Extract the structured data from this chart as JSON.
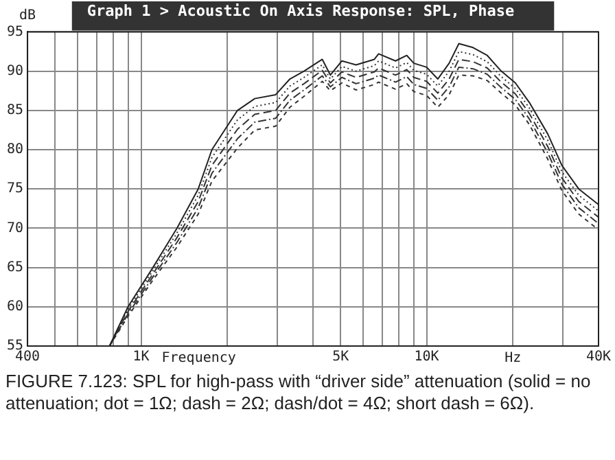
{
  "chart_data": {
    "type": "line",
    "title": "Graph 1 > Acoustic On Axis Response: SPL, Phase",
    "xlabel": "Frequency",
    "ylabel": "dB",
    "annotations": [
      "Hz",
      "FIGURE 7.123: SPL for high-pass with “driver side” attenuation (solid = no attenuation; dot = 1Ω; dash = 2Ω; dash/dot = 4Ω; short dash = 6Ω)."
    ],
    "log": "x",
    "grid": true,
    "marker": "none",
    "legend": false,
    "xlim": [
      400,
      40000
    ],
    "ylim": [
      55,
      95
    ],
    "xticks": [
      {
        "value": 400,
        "label": "400"
      },
      {
        "value": 500,
        "label": null
      },
      {
        "value": 600,
        "label": null
      },
      {
        "value": 700,
        "label": null
      },
      {
        "value": 800,
        "label": null
      },
      {
        "value": 900,
        "label": null
      },
      {
        "value": 1000,
        "label": "1K"
      },
      {
        "value": 2000,
        "label": null
      },
      {
        "value": 3000,
        "label": null
      },
      {
        "value": 4000,
        "label": null
      },
      {
        "value": 5000,
        "label": "5K"
      },
      {
        "value": 6000,
        "label": null
      },
      {
        "value": 7000,
        "label": null
      },
      {
        "value": 8000,
        "label": null
      },
      {
        "value": 9000,
        "label": null
      },
      {
        "value": 10000,
        "label": "10K"
      },
      {
        "value": 20000,
        "label": null
      },
      {
        "value": 30000,
        "label": null
      },
      {
        "value": 40000,
        "label": "40K"
      }
    ],
    "yticks": [
      55,
      60,
      65,
      70,
      75,
      80,
      85,
      90,
      95
    ],
    "x": [
      775,
      900,
      1100,
      1335,
      1585,
      1770,
      2175,
      2500,
      2960,
      3320,
      3720,
      4310,
      4600,
      5050,
      5660,
      6560,
      6790,
      7780,
      8520,
      9020,
      10000,
      10940,
      11990,
      12970,
      14540,
      16300,
      18250,
      20450,
      22900,
      26560,
      29760,
      34100,
      40000
    ],
    "series": [
      {
        "color": "#222222",
        "line_style": "solid",
        "values": [
          55,
          60,
          65,
          70,
          75,
          80,
          85,
          86.5,
          87,
          89,
          90,
          91.5,
          89.5,
          91.3,
          90.8,
          91.5,
          92.2,
          91.3,
          92,
          91,
          90.5,
          89,
          91,
          93.5,
          93,
          92,
          90,
          88.5,
          86,
          82,
          78,
          75,
          73
        ]
      },
      {
        "color": "#333333",
        "line_style": "dotted",
        "values": [
          55,
          59.7,
          64.6,
          69.4,
          74.2,
          79,
          83.8,
          85.5,
          86,
          88.1,
          89.2,
          90.8,
          89,
          90.6,
          90,
          90.7,
          91.3,
          90.4,
          91.1,
          90.1,
          89.6,
          88.1,
          90,
          92.5,
          92.1,
          91.2,
          89.3,
          87.8,
          85.3,
          81.2,
          77.2,
          74.2,
          72.2
        ]
      },
      {
        "color": "#333333",
        "line_style": "dashed",
        "values": [
          55,
          59.4,
          64.2,
          68.8,
          73.4,
          78,
          82.6,
          84.5,
          85,
          87.2,
          88.4,
          90.1,
          88.5,
          89.9,
          89.2,
          89.9,
          90.4,
          89.5,
          90.2,
          89.2,
          88.7,
          87.2,
          89,
          91.5,
          91.2,
          90.4,
          88.6,
          87.1,
          84.6,
          80.4,
          76.4,
          73.4,
          71.4
        ]
      },
      {
        "color": "#333333",
        "line_style": "dashdot",
        "values": [
          55,
          59.1,
          63.8,
          68.2,
          72.6,
          77,
          81.4,
          83.5,
          84,
          86.3,
          87.6,
          89.4,
          88,
          89.2,
          88.4,
          89.1,
          89.5,
          88.6,
          89.3,
          88.3,
          87.8,
          86.3,
          88,
          90.5,
          90.3,
          89.6,
          87.9,
          86.4,
          83.9,
          79.6,
          75.6,
          72.6,
          70.6
        ]
      },
      {
        "color": "#333333",
        "line_style": "shortdash",
        "values": [
          55,
          58.8,
          63.4,
          67.6,
          71.8,
          76,
          80.2,
          82.5,
          83,
          85.4,
          86.8,
          88.7,
          87.5,
          88.5,
          87.6,
          88.3,
          88.6,
          87.7,
          88.4,
          87.4,
          86.9,
          85.4,
          87,
          89.5,
          89.4,
          88.8,
          87.2,
          85.7,
          83.2,
          78.8,
          74.8,
          71.8,
          69.8
        ]
      }
    ]
  }
}
